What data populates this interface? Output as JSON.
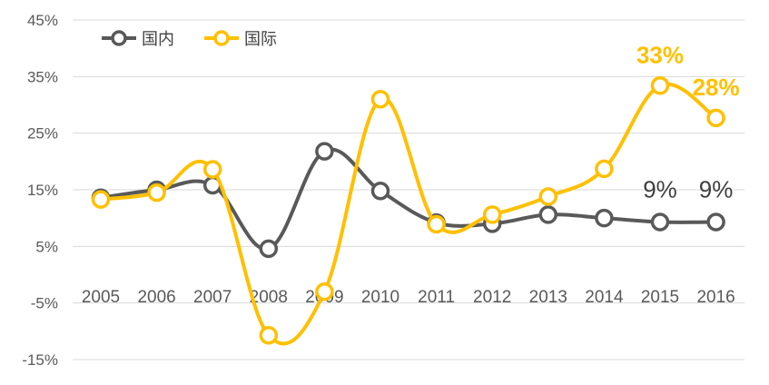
{
  "chart_data": {
    "type": "line",
    "title": "",
    "xlabel": "",
    "ylabel": "",
    "x": [
      "2005",
      "2006",
      "2007",
      "2008",
      "2009",
      "2010",
      "2011",
      "2012",
      "2013",
      "2014",
      "2015",
      "2016"
    ],
    "ylim": [
      -15,
      45
    ],
    "yticks": [
      45,
      35,
      25,
      15,
      5,
      -5,
      -15
    ],
    "ytick_labels": [
      "45%",
      "35%",
      "25%",
      "15%",
      "5%",
      "-5%",
      "-15%"
    ],
    "grid": true,
    "legend_position": "top-left",
    "series": [
      {
        "name": "国内",
        "color": "#595959",
        "values": [
          13.6,
          15.0,
          15.8,
          4.6,
          21.8,
          14.8,
          9.2,
          9.0,
          10.6,
          10.0,
          9.3,
          9.3
        ],
        "labels": {
          "10": "9%",
          "11": "9%"
        }
      },
      {
        "name": "国际",
        "color": "#FFC000",
        "values": [
          13.3,
          14.5,
          18.6,
          -10.7,
          -3.0,
          31.0,
          8.9,
          10.6,
          13.8,
          18.7,
          33.4,
          27.7
        ],
        "labels": {
          "10": "33%",
          "11": "28%"
        }
      }
    ]
  }
}
